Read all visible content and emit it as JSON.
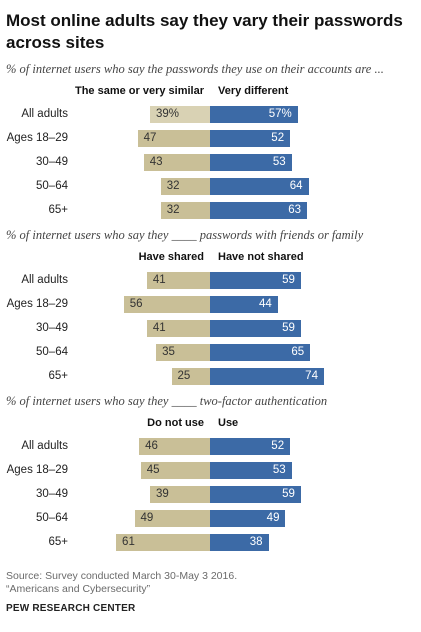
{
  "title": "Most online adults say they vary their passwords across sites",
  "chart_data": [
    {
      "type": "bar",
      "subtitle": "% of internet users who say the passwords they use on their accounts are ...",
      "categories": [
        "All adults",
        "Ages 18–29",
        "30–49",
        "50–64",
        "65+"
      ],
      "series": [
        {
          "name": "The same or very similar",
          "values": [
            39,
            47,
            43,
            32,
            32
          ],
          "labels": [
            "39%",
            "47",
            "43",
            "32",
            "32"
          ]
        },
        {
          "name": "Very different",
          "values": [
            57,
            52,
            53,
            64,
            63
          ],
          "labels": [
            "57%",
            "52",
            "53",
            "64",
            "63"
          ]
        }
      ]
    },
    {
      "type": "bar",
      "subtitle": "% of internet users who say they ____ passwords with friends or family",
      "categories": [
        "All adults",
        "Ages 18–29",
        "30–49",
        "50–64",
        "65+"
      ],
      "series": [
        {
          "name": "Have shared",
          "values": [
            41,
            56,
            41,
            35,
            25
          ],
          "labels": [
            "41",
            "56",
            "41",
            "35",
            "25"
          ]
        },
        {
          "name": "Have not shared",
          "values": [
            59,
            44,
            59,
            65,
            74
          ],
          "labels": [
            "59",
            "44",
            "59",
            "65",
            "74"
          ]
        }
      ]
    },
    {
      "type": "bar",
      "subtitle": "% of internet users who say they ____ two-factor authentication",
      "categories": [
        "All adults",
        "Ages 18–29",
        "30–49",
        "50–64",
        "65+"
      ],
      "series": [
        {
          "name": "Do not use",
          "values": [
            46,
            45,
            39,
            49,
            61
          ],
          "labels": [
            "46",
            "45",
            "39",
            "49",
            "61"
          ]
        },
        {
          "name": "Use",
          "values": [
            52,
            53,
            59,
            49,
            38
          ],
          "labels": [
            "52",
            "53",
            "59",
            "49",
            "38"
          ]
        }
      ]
    }
  ],
  "footer": {
    "source": "Source: Survey conducted March 30-May 3 2016.",
    "report": "“Americans and Cybersecurity”",
    "brand": "PEW RESEARCH CENTER"
  },
  "colors": {
    "left_bar": "#c9bf97",
    "left_bar_total": "#d9d2b4",
    "right_bar": "#3c6aa6"
  }
}
